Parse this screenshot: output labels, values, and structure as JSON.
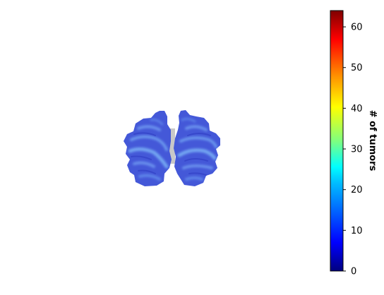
{
  "chart_data": {
    "type": "heatmap",
    "title": "",
    "colorbar": {
      "label": "# of tumors",
      "colormap": "jet",
      "range": [
        0,
        64
      ],
      "ticks": [
        0,
        10,
        20,
        30,
        40,
        50,
        60
      ],
      "tick_labels": [
        "0",
        "10",
        "20",
        "30",
        "40",
        "50",
        "60"
      ]
    },
    "image": {
      "description_kind": "brain-slice-overlay",
      "hemispheres": [
        "left",
        "right"
      ],
      "typical_value_range": [
        5,
        22
      ],
      "axes_visible": false
    }
  },
  "colors": {
    "jet": [
      "#00007f",
      "#0000ff",
      "#007fff",
      "#00ffff",
      "#7fff7f",
      "#ffff00",
      "#ff7f00",
      "#ff0000",
      "#7f0000"
    ],
    "brain_low": "#3d4fd6",
    "brain_mid": "#5273e6",
    "brain_high": "#6fa0f0",
    "midline": "#c8c8c8"
  }
}
